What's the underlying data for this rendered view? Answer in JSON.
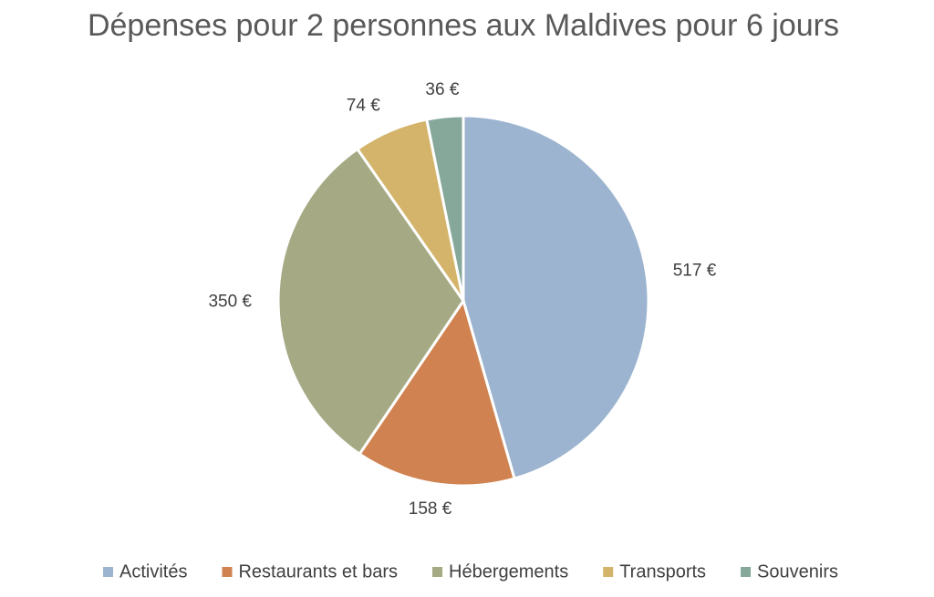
{
  "chart_data": {
    "type": "pie",
    "title": "Dépenses pour 2 personnes aux Maldives pour 6 jours",
    "categories": [
      "Activités",
      "Restaurants et bars",
      "Hébergements",
      "Transports",
      "Souvenirs"
    ],
    "values": [
      517,
      158,
      350,
      74,
      36
    ],
    "value_labels": [
      "517 €",
      "158 €",
      "350 €",
      "74 €",
      "36 €"
    ],
    "colors": [
      "#9cb4cf",
      "#d08350",
      "#a5a984",
      "#d3b46a",
      "#85a89b"
    ],
    "legend": "bottom"
  }
}
